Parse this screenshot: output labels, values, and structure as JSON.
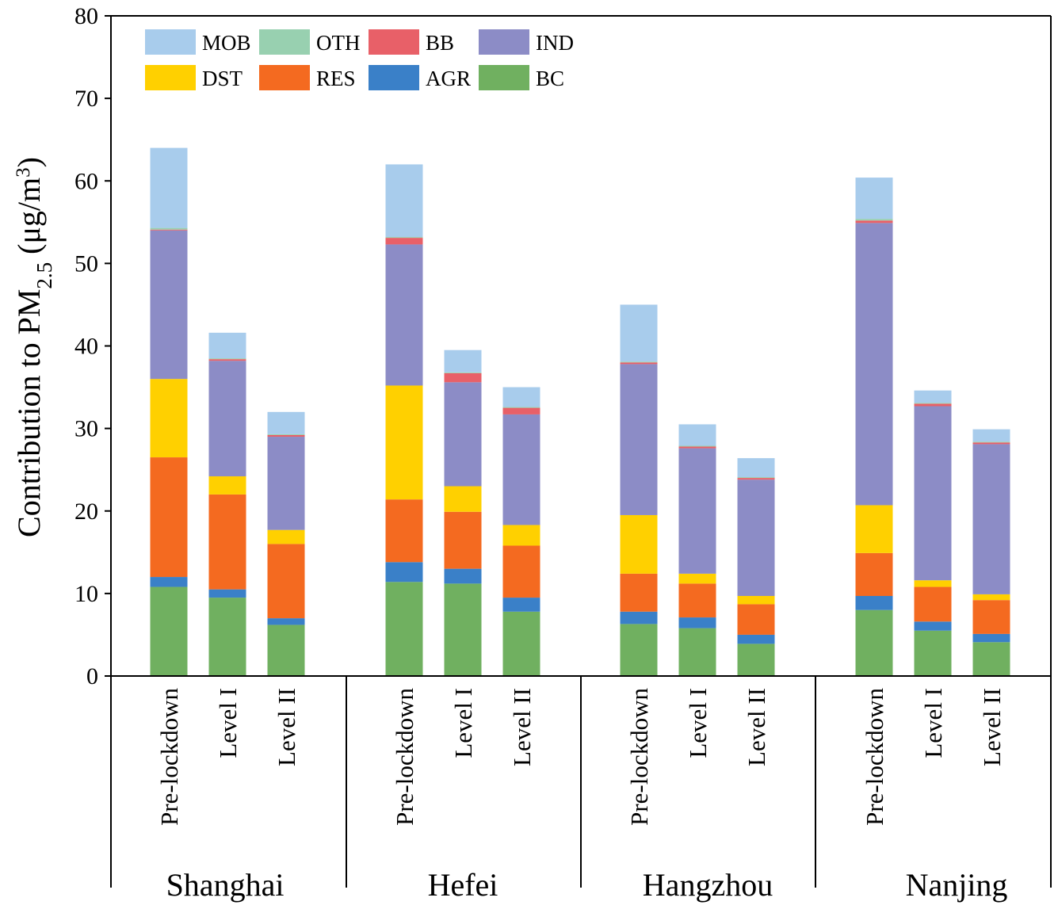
{
  "chart_data": {
    "type": "bar",
    "stacked": true,
    "ylabel_main": "Contribution to PM",
    "ylabel_sub": "2.5",
    "ylabel_unit": "(μg/m",
    "ylabel_sup": "3",
    "ylabel_close": ")",
    "ylim": [
      0,
      80
    ],
    "yticks": [
      "0",
      "10",
      "20",
      "30",
      "40",
      "50",
      "60",
      "70",
      "80"
    ],
    "groups": [
      {
        "name": "Shanghai",
        "categories": [
          "Pre-lockdown",
          "Level I",
          "Level II"
        ]
      },
      {
        "name": "Hefei",
        "categories": [
          "Pre-lockdown",
          "Level I",
          "Level II"
        ]
      },
      {
        "name": "Hangzhou",
        "categories": [
          "Pre-lockdown",
          "Level I",
          "Level II"
        ]
      },
      {
        "name": "Nanjing",
        "categories": [
          "Pre-lockdown",
          "Level I",
          "Level II"
        ]
      }
    ],
    "legend_position": "top-left",
    "legend_order": [
      "MOB",
      "OTH",
      "BB",
      "IND",
      "DST",
      "RES",
      "AGR",
      "BC"
    ],
    "series": [
      {
        "name": "BC",
        "color": "#70b060",
        "values": [
          10.8,
          9.5,
          6.2,
          11.4,
          11.2,
          7.8,
          6.3,
          5.8,
          3.9,
          8.0,
          5.5,
          4.1
        ]
      },
      {
        "name": "AGR",
        "color": "#3a80c8",
        "values": [
          1.2,
          1.0,
          0.8,
          2.4,
          1.8,
          1.7,
          1.5,
          1.3,
          1.1,
          1.7,
          1.1,
          1.0
        ]
      },
      {
        "name": "RES",
        "color": "#f46a20",
        "values": [
          14.5,
          11.5,
          9.0,
          7.6,
          6.9,
          6.3,
          4.6,
          4.1,
          3.7,
          5.2,
          4.2,
          4.1
        ]
      },
      {
        "name": "DST",
        "color": "#ffd000",
        "values": [
          9.5,
          2.2,
          1.7,
          13.8,
          3.1,
          2.5,
          7.1,
          1.2,
          1.0,
          5.8,
          0.8,
          0.7
        ]
      },
      {
        "name": "IND",
        "color": "#8c8cc6",
        "values": [
          18.0,
          14.0,
          11.3,
          17.1,
          12.6,
          13.4,
          18.3,
          15.2,
          14.1,
          34.2,
          21.1,
          18.2
        ]
      },
      {
        "name": "BB",
        "color": "#e86068",
        "values": [
          0.1,
          0.2,
          0.2,
          0.8,
          1.1,
          0.8,
          0.2,
          0.2,
          0.2,
          0.3,
          0.3,
          0.2
        ]
      },
      {
        "name": "OTH",
        "color": "#98d0b0",
        "values": [
          0.2,
          0.1,
          0.1,
          0.1,
          0.1,
          0.1,
          0.1,
          0.1,
          0.1,
          0.2,
          0.1,
          0.1
        ]
      },
      {
        "name": "MOB",
        "color": "#a8ccec",
        "values": [
          9.7,
          3.1,
          2.7,
          8.8,
          2.7,
          2.4,
          6.9,
          2.6,
          2.3,
          5.0,
          1.5,
          1.5
        ]
      }
    ]
  }
}
